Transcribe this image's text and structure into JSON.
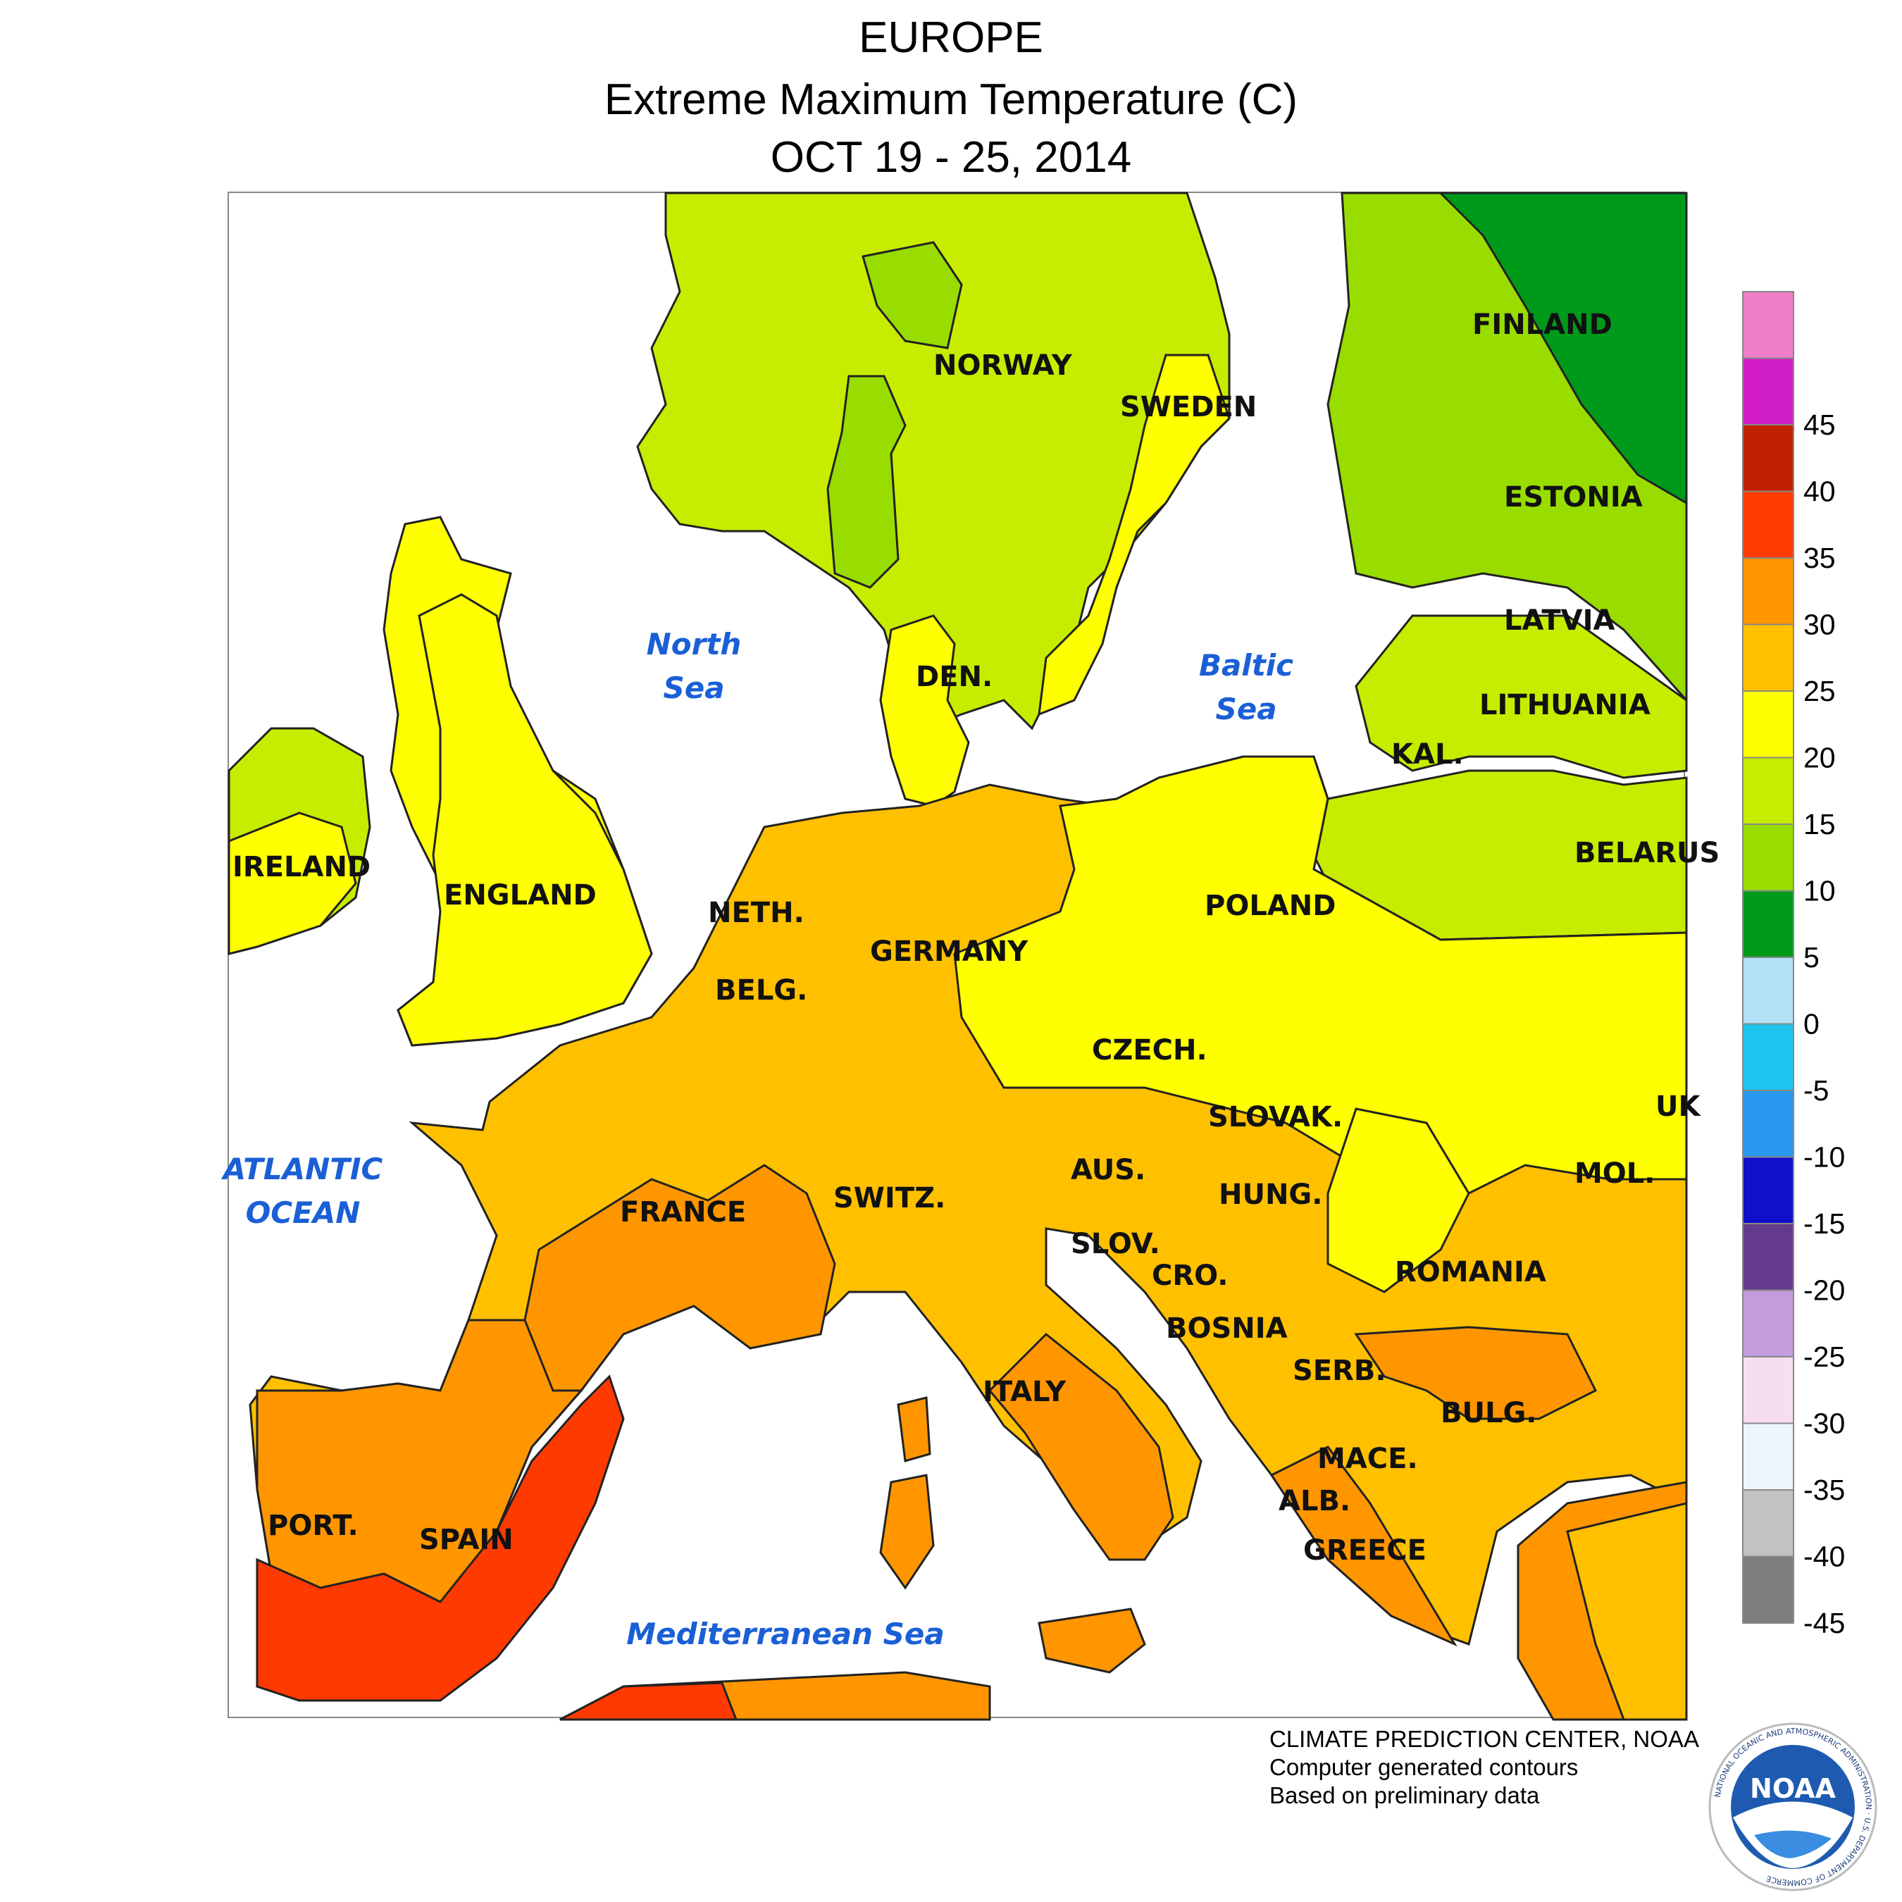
{
  "header": {
    "region": "EUROPE",
    "variable": "Extreme Maximum Temperature (C)",
    "dates": "OCT 19 - 25, 2014"
  },
  "map": {
    "colors": {
      "water": "#ffffff",
      "c0_5": "#009a1a",
      "c5_10": "#99dd00",
      "c10_15": "#c8ec00",
      "c15_20": "#ffff00",
      "c20_25": "#ffc000",
      "c25_30": "#ff9600",
      "c30_35": "#ff3a00",
      "c35_40": "#c82400",
      "contour": "#222222"
    },
    "countries": [
      {
        "key": "norway",
        "label": "NORWAY"
      },
      {
        "key": "sweden",
        "label": "SWEDEN"
      },
      {
        "key": "finland",
        "label": "FINLAND"
      },
      {
        "key": "estonia",
        "label": "ESTONIA"
      },
      {
        "key": "latvia",
        "label": "LATVIA"
      },
      {
        "key": "lithuania",
        "label": "LITHUANIA"
      },
      {
        "key": "kal",
        "label": "KAL."
      },
      {
        "key": "belarus",
        "label": "BELARUS"
      },
      {
        "key": "den",
        "label": "DEN."
      },
      {
        "key": "ireland",
        "label": "IRELAND"
      },
      {
        "key": "england",
        "label": "ENGLAND"
      },
      {
        "key": "neth",
        "label": "NETH."
      },
      {
        "key": "belg",
        "label": "BELG."
      },
      {
        "key": "germany",
        "label": "GERMANY"
      },
      {
        "key": "poland",
        "label": "POLAND"
      },
      {
        "key": "czech",
        "label": "CZECH."
      },
      {
        "key": "slovak",
        "label": "SLOVAK."
      },
      {
        "key": "uk",
        "label": "UK"
      },
      {
        "key": "france",
        "label": "FRANCE"
      },
      {
        "key": "switz",
        "label": "SWITZ."
      },
      {
        "key": "aus",
        "label": "AUS."
      },
      {
        "key": "hung",
        "label": "HUNG."
      },
      {
        "key": "mol",
        "label": "MOL."
      },
      {
        "key": "slov",
        "label": "SLOV."
      },
      {
        "key": "cro",
        "label": "CRO."
      },
      {
        "key": "romania",
        "label": "ROMANIA"
      },
      {
        "key": "bosnia",
        "label": "BOSNIA"
      },
      {
        "key": "serb",
        "label": "SERB."
      },
      {
        "key": "italy",
        "label": "ITALY"
      },
      {
        "key": "bulg",
        "label": "BULG."
      },
      {
        "key": "mace",
        "label": "MACE."
      },
      {
        "key": "alb",
        "label": "ALB."
      },
      {
        "key": "greece",
        "label": "GREECE"
      },
      {
        "key": "port",
        "label": "PORT."
      },
      {
        "key": "spain",
        "label": "SPAIN"
      }
    ],
    "seas": [
      {
        "key": "north-sea",
        "lines": [
          "North",
          "Sea"
        ]
      },
      {
        "key": "baltic-sea",
        "lines": [
          "Baltic",
          "Sea"
        ]
      },
      {
        "key": "atlantic-ocean",
        "lines": [
          "ATLANTIC",
          "OCEAN"
        ]
      },
      {
        "key": "mediterranean-sea",
        "lines": [
          "Mediterranean Sea"
        ]
      }
    ]
  },
  "colorbar": {
    "bins": [
      {
        "color": "#ef7fc8",
        "label": ""
      },
      {
        "color": "#d21ec8",
        "label": "45"
      },
      {
        "color": "#c02000",
        "label": "40"
      },
      {
        "color": "#ff3c00",
        "label": "35"
      },
      {
        "color": "#ff9600",
        "label": "30"
      },
      {
        "color": "#ffc000",
        "label": "25"
      },
      {
        "color": "#ffff00",
        "label": "20"
      },
      {
        "color": "#c8ec00",
        "label": "15"
      },
      {
        "color": "#99dd00",
        "label": "10"
      },
      {
        "color": "#009a1a",
        "label": "5"
      },
      {
        "color": "#b2e2f6",
        "label": "0"
      },
      {
        "color": "#1cc4ee",
        "label": "-5"
      },
      {
        "color": "#2897ee",
        "label": "-10"
      },
      {
        "color": "#1010c8",
        "label": "-15"
      },
      {
        "color": "#633a8c",
        "label": "-20"
      },
      {
        "color": "#c39ddb",
        "label": "-25"
      },
      {
        "color": "#f7ddf0",
        "label": "-30"
      },
      {
        "color": "#edf6fa",
        "label": "-35"
      },
      {
        "color": "#c2c2c2",
        "label": "-40"
      },
      {
        "color": "#7c7f7e",
        "label": "-45"
      }
    ]
  },
  "credits": {
    "line1": "CLIMATE PREDICTION CENTER, NOAA",
    "line2": "Computer generated contours",
    "line3": "Based on preliminary data"
  },
  "logo": {
    "text": "NOAA",
    "ring_text": "NATIONAL OCEANIC AND ATMOSPHERIC ADMINISTRATION · U.S. DEPARTMENT OF COMMERCE"
  }
}
